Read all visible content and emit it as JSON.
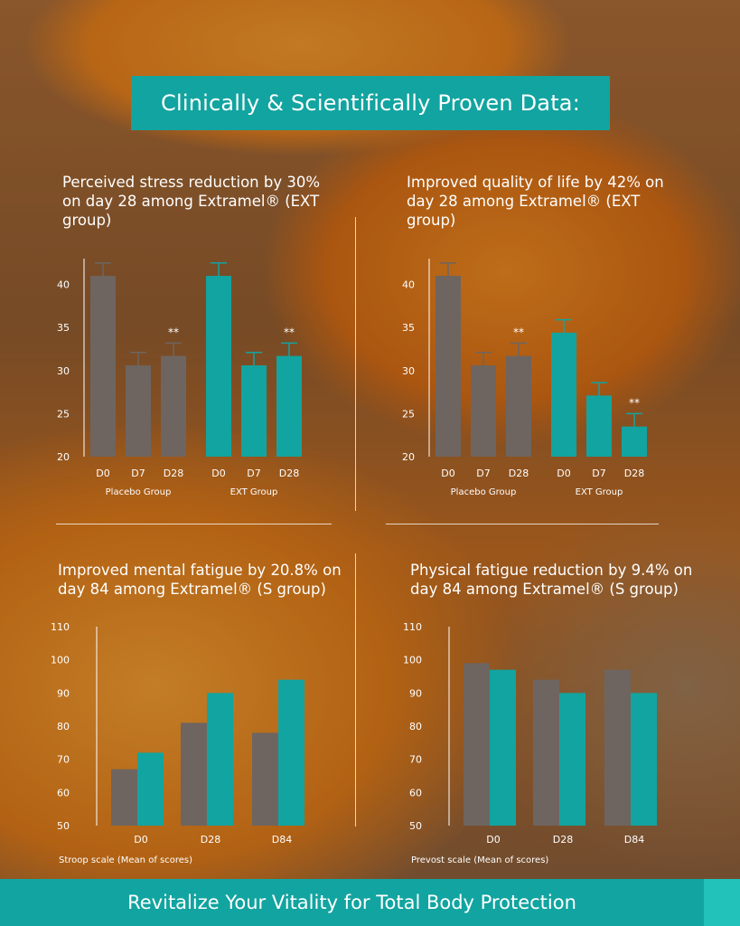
{
  "header": {
    "title": "Clinically & Scientifically Proven Data:"
  },
  "footer": {
    "tagline": "Revitalize Your Vitality for Total Body Protection"
  },
  "colors": {
    "placebo": "#6e6560",
    "ext": "#12a4a0",
    "accent": "#12a4a0",
    "text": "#ffffff"
  },
  "chart_data": [
    {
      "id": "stress",
      "type": "bar",
      "title": "Perceived stress reduction by 30% on day 28 among Extramel® (EXT group)",
      "categories": [
        "D0",
        "D7",
        "D28",
        "D0",
        "D7",
        "D28"
      ],
      "groups": [
        "Placebo Group",
        "EXT Group"
      ],
      "values": [
        41,
        30.6,
        31.7,
        41,
        30.6,
        31.7
      ],
      "errors": [
        1.5,
        1.5,
        1.5,
        1.5,
        1.5,
        1.5
      ],
      "significance": [
        "",
        "",
        "**",
        "",
        "",
        "**"
      ],
      "ylim": [
        20,
        43
      ],
      "yticks": [
        20,
        25,
        30,
        35,
        40
      ],
      "xlabel": ""
    },
    {
      "id": "quality",
      "type": "bar",
      "title": "Improved quality of life by 42% on day 28 among Extramel® (EXT group)",
      "categories": [
        "D0",
        "D7",
        "D28",
        "D0",
        "D7",
        "D28"
      ],
      "groups": [
        "Placebo Group",
        "EXT Group"
      ],
      "values": [
        41,
        30.6,
        31.7,
        34.4,
        27.1,
        23.5
      ],
      "errors": [
        1.5,
        1.5,
        1.5,
        1.5,
        1.5,
        1.5
      ],
      "significance": [
        "",
        "",
        "**",
        "",
        "",
        "**"
      ],
      "ylim": [
        20,
        43
      ],
      "yticks": [
        20,
        25,
        30,
        35,
        40
      ],
      "xlabel": ""
    },
    {
      "id": "mental",
      "type": "bar",
      "title": "Improved mental fatigue by 20.8% on day 84 among Extramel® (S group)",
      "categories": [
        "D0",
        "D28",
        "D84"
      ],
      "series": [
        {
          "values": [
            67,
            81,
            78
          ]
        },
        {
          "values": [
            72,
            90,
            94
          ]
        }
      ],
      "ylim": [
        50,
        110
      ],
      "yticks": [
        50,
        60,
        70,
        80,
        90,
        100,
        110
      ],
      "xlabel": "Stroop scale (Mean of scores)"
    },
    {
      "id": "physical",
      "type": "bar",
      "title": "Physical fatigue reduction by 9.4% on day 84 among Extramel® (S group)",
      "categories": [
        "D0",
        "D28",
        "D84"
      ],
      "series": [
        {
          "values": [
            99,
            94,
            97
          ]
        },
        {
          "values": [
            97,
            90,
            90
          ]
        }
      ],
      "ylim": [
        50,
        110
      ],
      "yticks": [
        50,
        60,
        70,
        80,
        90,
        100,
        110
      ],
      "xlabel": "Prevost scale (Mean of scores)"
    }
  ]
}
